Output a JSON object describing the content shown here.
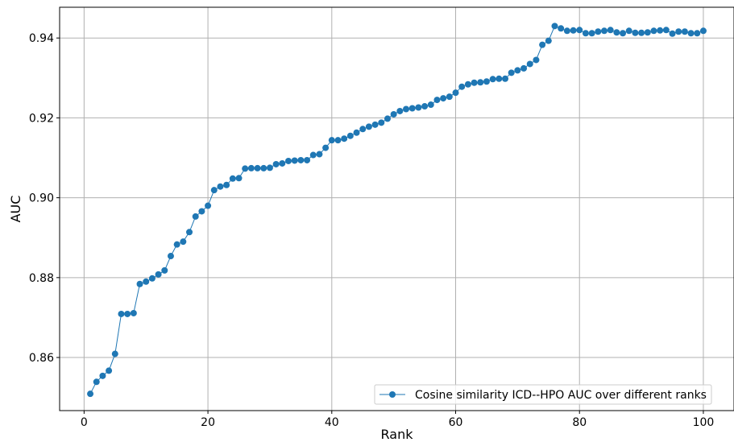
{
  "chart_data": {
    "type": "line",
    "title": "",
    "xlabel": "Rank",
    "ylabel": "AUC",
    "xlim": [
      -3.95,
      104.95
    ],
    "ylim": [
      0.8467,
      0.9477
    ],
    "xticks": [
      0,
      20,
      40,
      60,
      80,
      100
    ],
    "xtick_labels": [
      "0",
      "20",
      "40",
      "60",
      "80",
      "100"
    ],
    "yticks": [
      0.86,
      0.88,
      0.9,
      0.92,
      0.94
    ],
    "ytick_labels": [
      "0.86",
      "0.88",
      "0.90",
      "0.92",
      "0.94"
    ],
    "grid": true,
    "legend_position": "lower-right",
    "series": [
      {
        "name": "Cosine similarity ICD--HPO AUC over different ranks",
        "color": "#1f77b4",
        "marker": "circle",
        "x": [
          1,
          2,
          3,
          4,
          5,
          6,
          7,
          8,
          9,
          10,
          11,
          12,
          13,
          14,
          15,
          16,
          17,
          18,
          19,
          20,
          21,
          22,
          23,
          24,
          25,
          26,
          27,
          28,
          29,
          30,
          31,
          32,
          33,
          34,
          35,
          36,
          37,
          38,
          39,
          40,
          41,
          42,
          43,
          44,
          45,
          46,
          47,
          48,
          49,
          50,
          51,
          52,
          53,
          54,
          55,
          56,
          57,
          58,
          59,
          60,
          61,
          62,
          63,
          64,
          65,
          66,
          67,
          68,
          69,
          70,
          71,
          72,
          73,
          74,
          75,
          76,
          77,
          78,
          79,
          80,
          81,
          82,
          83,
          84,
          85,
          86,
          87,
          88,
          89,
          90,
          91,
          92,
          93,
          94,
          95,
          96,
          97,
          98,
          99,
          100
        ],
        "y": [
          0.8509,
          0.8539,
          0.8554,
          0.8567,
          0.8609,
          0.8709,
          0.8709,
          0.8711,
          0.8784,
          0.879,
          0.8798,
          0.8808,
          0.8818,
          0.8854,
          0.8883,
          0.889,
          0.8914,
          0.8953,
          0.8966,
          0.898,
          0.9019,
          0.9028,
          0.9032,
          0.9048,
          0.9049,
          0.9073,
          0.9074,
          0.9074,
          0.9074,
          0.9075,
          0.9084,
          0.9086,
          0.9092,
          0.9093,
          0.9094,
          0.9094,
          0.9107,
          0.9109,
          0.9125,
          0.9144,
          0.9144,
          0.9148,
          0.9155,
          0.9163,
          0.9172,
          0.9178,
          0.9183,
          0.9188,
          0.9198,
          0.9209,
          0.9217,
          0.9222,
          0.9224,
          0.9226,
          0.9229,
          0.9233,
          0.9245,
          0.9249,
          0.9253,
          0.9263,
          0.9278,
          0.9284,
          0.9288,
          0.9289,
          0.9291,
          0.9297,
          0.9298,
          0.9298,
          0.9313,
          0.9319,
          0.9324,
          0.9335,
          0.9345,
          0.9383,
          0.9393,
          0.943,
          0.9424,
          0.9418,
          0.9419,
          0.942,
          0.9412,
          0.9412,
          0.9416,
          0.9418,
          0.942,
          0.9414,
          0.9412,
          0.9418,
          0.9413,
          0.9413,
          0.9414,
          0.9418,
          0.9419,
          0.942,
          0.9411,
          0.9416,
          0.9416,
          0.9412,
          0.9412,
          0.9418
        ]
      }
    ]
  }
}
